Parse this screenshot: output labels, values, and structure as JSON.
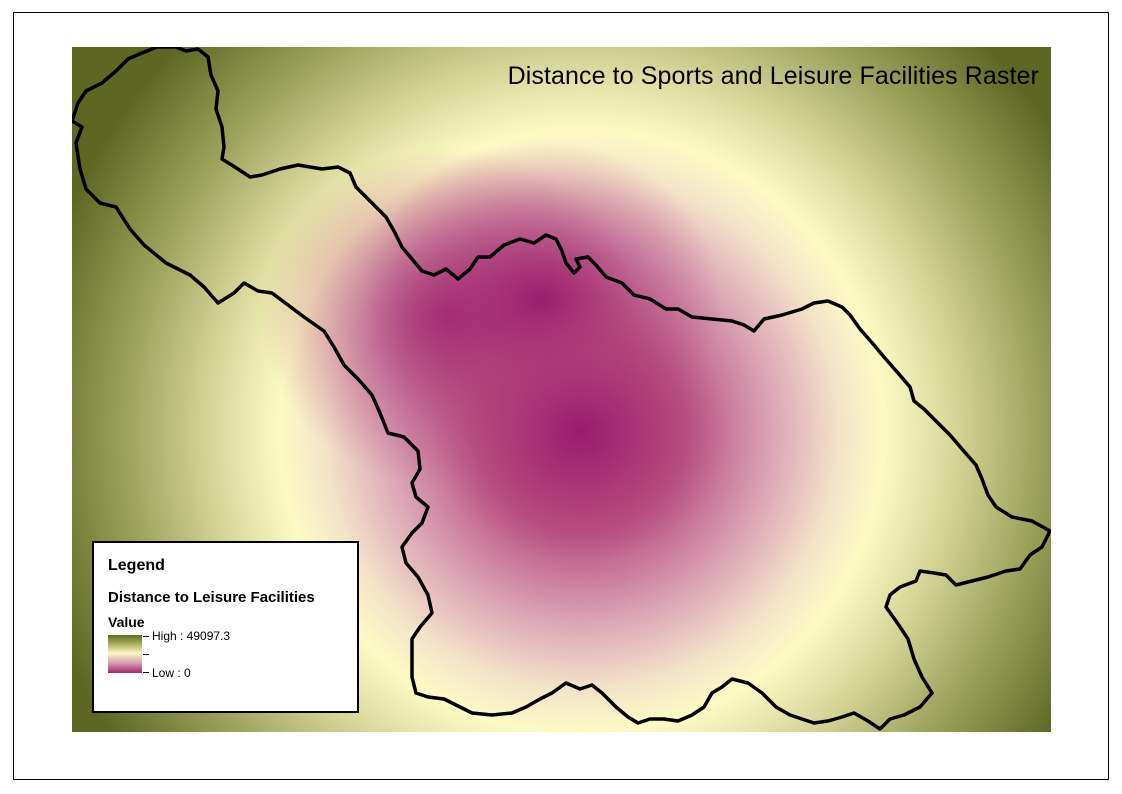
{
  "map": {
    "title": "Distance to Sports and Leisure Facilities Raster",
    "colors": {
      "low": "#a0236c",
      "mid": "#fbf9c3",
      "high": "#5f6a1f",
      "boundary": "#000000"
    }
  },
  "legend": {
    "title": "Legend",
    "layer_name": "Distance to Leisure Facilities",
    "field": "Value",
    "high_label": "High : 49097.3",
    "low_label": "Low : 0"
  }
}
